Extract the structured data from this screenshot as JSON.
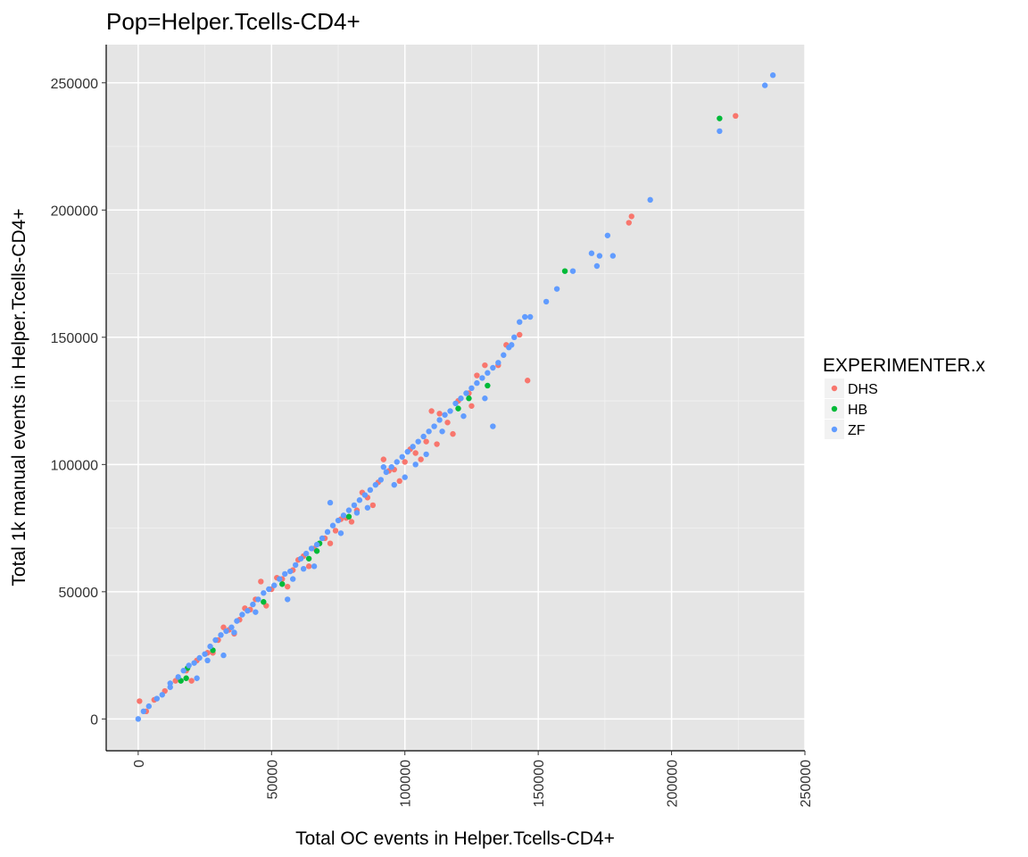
{
  "chart_data": {
    "type": "scatter",
    "title": "Pop=Helper.Tcells-CD4+",
    "xlabel": "Total OC events in Helper.Tcells-CD4+",
    "ylabel": "Total 1k manual events in Helper.Tcells-CD4+",
    "xlim": [
      -12000,
      250000
    ],
    "ylim": [
      -12500,
      265000
    ],
    "x_ticks": [
      0,
      50000,
      100000,
      150000,
      200000,
      250000
    ],
    "x_tick_labels": [
      "0",
      "50000",
      "100000",
      "150000",
      "200000",
      "250000"
    ],
    "y_ticks": [
      0,
      50000,
      100000,
      150000,
      200000,
      250000
    ],
    "y_tick_labels": [
      "0",
      "50000",
      "100000",
      "150000",
      "200000",
      "250000"
    ],
    "x_tick_rotation": "vertical",
    "grid": true,
    "legend": {
      "title": "EXPERIMENTER.x",
      "position": "right"
    },
    "colors": {
      "DHS": "#F8766D",
      "HB": "#00BA38",
      "ZF": "#619CFF",
      "panel": "#E5E5E5",
      "grid_major": "#FFFFFF",
      "grid_minor": "#F2F2F2"
    },
    "series": [
      {
        "name": "DHS",
        "points": [
          [
            500,
            7000
          ],
          [
            3000,
            3000
          ],
          [
            6000,
            7500
          ],
          [
            10000,
            11000
          ],
          [
            14000,
            15000
          ],
          [
            18000,
            19000
          ],
          [
            22000,
            23000
          ],
          [
            26000,
            26000
          ],
          [
            30000,
            31000
          ],
          [
            34000,
            35000
          ],
          [
            38000,
            39000
          ],
          [
            42000,
            43000
          ],
          [
            44000,
            47000
          ],
          [
            46000,
            54000
          ],
          [
            50000,
            51000
          ],
          [
            54000,
            55000
          ],
          [
            58000,
            58500
          ],
          [
            62000,
            64000
          ],
          [
            66000,
            67000
          ],
          [
            70000,
            71000
          ],
          [
            74000,
            74000
          ],
          [
            78000,
            79000
          ],
          [
            82000,
            82000
          ],
          [
            86000,
            87000
          ],
          [
            90000,
            93000
          ],
          [
            92000,
            102000
          ],
          [
            96000,
            98000
          ],
          [
            100000,
            101000
          ],
          [
            104000,
            104500
          ],
          [
            108000,
            109000
          ],
          [
            110000,
            121000
          ],
          [
            113000,
            120000
          ],
          [
            116000,
            116500
          ],
          [
            120000,
            125000
          ],
          [
            124000,
            128000
          ],
          [
            127000,
            135000
          ],
          [
            130000,
            139000
          ],
          [
            135000,
            139000
          ],
          [
            138000,
            147000
          ],
          [
            143000,
            151000
          ],
          [
            146000,
            133000
          ],
          [
            184000,
            195000
          ],
          [
            185000,
            197500
          ],
          [
            224000,
            237000
          ],
          [
            20000,
            15000
          ],
          [
            28000,
            26000
          ],
          [
            36000,
            33500
          ],
          [
            48000,
            44500
          ],
          [
            56000,
            52000
          ],
          [
            64000,
            60000
          ],
          [
            72000,
            69000
          ],
          [
            80000,
            77500
          ],
          [
            88000,
            84000
          ],
          [
            98000,
            93500
          ],
          [
            106000,
            102000
          ],
          [
            112000,
            108000
          ],
          [
            118000,
            112000
          ],
          [
            125000,
            123000
          ],
          [
            40000,
            43500
          ],
          [
            60000,
            62500
          ],
          [
            76000,
            78500
          ],
          [
            94000,
            97500
          ],
          [
            102000,
            106000
          ],
          [
            84000,
            89000
          ],
          [
            52000,
            55500
          ],
          [
            32000,
            36000
          ]
        ]
      },
      {
        "name": "HB",
        "points": [
          [
            18000,
            16000
          ],
          [
            18500,
            20000
          ],
          [
            16000,
            15000
          ],
          [
            28000,
            27000
          ],
          [
            47000,
            46000
          ],
          [
            54000,
            53000
          ],
          [
            64000,
            63000
          ],
          [
            67000,
            66000
          ],
          [
            68000,
            69000
          ],
          [
            79000,
            79500
          ],
          [
            120000,
            122000
          ],
          [
            124000,
            126000
          ],
          [
            131000,
            131000
          ],
          [
            160000,
            176000
          ],
          [
            218000,
            236000
          ]
        ]
      },
      {
        "name": "ZF",
        "points": [
          [
            0,
            0
          ],
          [
            2000,
            3000
          ],
          [
            4000,
            5000
          ],
          [
            7000,
            8000
          ],
          [
            9000,
            9500
          ],
          [
            12000,
            12500
          ],
          [
            15000,
            16500
          ],
          [
            17000,
            19000
          ],
          [
            19000,
            21000
          ],
          [
            21000,
            22000
          ],
          [
            23000,
            24000
          ],
          [
            25000,
            25500
          ],
          [
            27000,
            28500
          ],
          [
            29000,
            31000
          ],
          [
            31000,
            33000
          ],
          [
            33000,
            34500
          ],
          [
            35000,
            36000
          ],
          [
            37000,
            38500
          ],
          [
            39000,
            41000
          ],
          [
            41000,
            42500
          ],
          [
            43000,
            45000
          ],
          [
            45000,
            47000
          ],
          [
            47000,
            49500
          ],
          [
            49000,
            51000
          ],
          [
            51000,
            52500
          ],
          [
            53000,
            55000
          ],
          [
            55000,
            57000
          ],
          [
            57000,
            58000
          ],
          [
            59000,
            60500
          ],
          [
            61000,
            63000
          ],
          [
            63000,
            65000
          ],
          [
            65000,
            67000
          ],
          [
            67000,
            68500
          ],
          [
            69000,
            71000
          ],
          [
            71000,
            73500
          ],
          [
            73000,
            76000
          ],
          [
            75000,
            78000
          ],
          [
            77000,
            80000
          ],
          [
            79000,
            82000
          ],
          [
            81000,
            84000
          ],
          [
            83000,
            86000
          ],
          [
            85000,
            88000
          ],
          [
            87000,
            90000
          ],
          [
            89000,
            92000
          ],
          [
            91000,
            94000
          ],
          [
            93000,
            97000
          ],
          [
            95000,
            99000
          ],
          [
            97000,
            101000
          ],
          [
            99000,
            103000
          ],
          [
            101000,
            105000
          ],
          [
            103000,
            107000
          ],
          [
            105000,
            109000
          ],
          [
            107000,
            111000
          ],
          [
            109000,
            113000
          ],
          [
            111000,
            115000
          ],
          [
            113000,
            117500
          ],
          [
            115000,
            119500
          ],
          [
            117000,
            121000
          ],
          [
            119000,
            124000
          ],
          [
            121000,
            126000
          ],
          [
            123000,
            128000
          ],
          [
            125000,
            130000
          ],
          [
            127000,
            132000
          ],
          [
            129000,
            134000
          ],
          [
            131000,
            136000
          ],
          [
            133000,
            138000
          ],
          [
            135000,
            140000
          ],
          [
            137000,
            143000
          ],
          [
            139000,
            146000
          ],
          [
            141000,
            150000
          ],
          [
            143000,
            156000
          ],
          [
            145000,
            158000
          ],
          [
            147000,
            158000
          ],
          [
            153000,
            164000
          ],
          [
            157000,
            169000
          ],
          [
            163000,
            176000
          ],
          [
            170000,
            183000
          ],
          [
            172000,
            178000
          ],
          [
            173000,
            182000
          ],
          [
            176000,
            190000
          ],
          [
            178000,
            182000
          ],
          [
            192000,
            204000
          ],
          [
            218000,
            231000
          ],
          [
            235000,
            249000
          ],
          [
            238000,
            253000
          ],
          [
            133000,
            115000
          ],
          [
            130000,
            126000
          ],
          [
            56000,
            47000
          ],
          [
            66000,
            60000
          ],
          [
            32000,
            25000
          ],
          [
            22000,
            16000
          ],
          [
            12000,
            14000
          ],
          [
            72000,
            85000
          ],
          [
            100000,
            95000
          ],
          [
            140000,
            147000
          ],
          [
            92000,
            99000
          ],
          [
            58000,
            55000
          ],
          [
            44000,
            42000
          ],
          [
            86000,
            83000
          ],
          [
            108000,
            104000
          ],
          [
            122000,
            119000
          ],
          [
            76000,
            73000
          ],
          [
            36000,
            34000
          ],
          [
            26000,
            23000
          ],
          [
            62000,
            59000
          ],
          [
            82000,
            81000
          ],
          [
            114000,
            113000
          ],
          [
            104000,
            100000
          ],
          [
            96000,
            92000
          ]
        ]
      }
    ]
  }
}
